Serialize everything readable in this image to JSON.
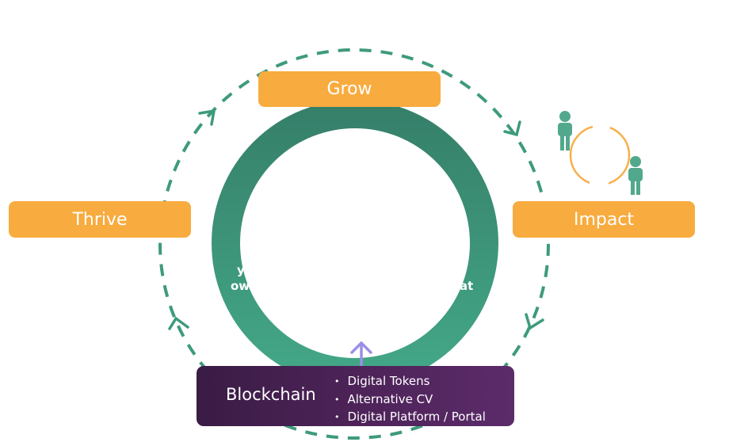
{
  "nodes": {
    "grow": "Grow",
    "thrive": "Thrive",
    "impact": "Impact"
  },
  "blockchain": {
    "title": "Blockchain",
    "items": [
      "Digital Tokens",
      "Alternative CV",
      "Digital Platform / Portal"
    ]
  },
  "ring_fragments": {
    "left_top": "y",
    "left_bottom": "ow",
    "right_bottom": "at"
  },
  "colors": {
    "accent_orange": "#f8ab3e",
    "ring_green_top": "#36806a",
    "ring_green_bottom": "#42a585",
    "dashed_green": "#3e9a7d",
    "blockchain_purple": "#4d2358",
    "arrow_lavender": "#9a8fe6",
    "people_green": "#52a88c"
  },
  "icons": [
    "person-icon",
    "person-icon",
    "arrow-up-icon"
  ]
}
